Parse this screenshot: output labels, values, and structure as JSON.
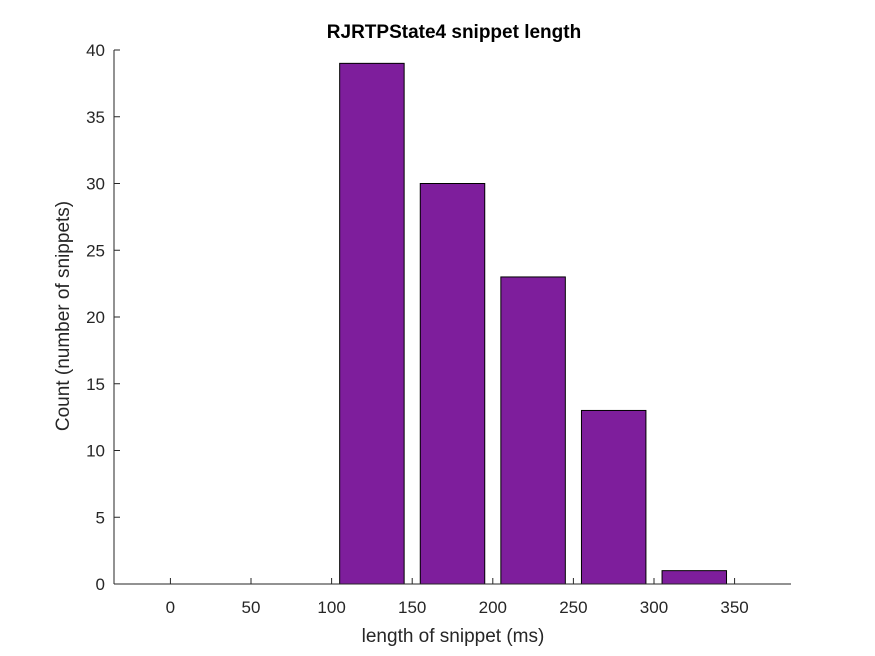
{
  "chart_data": {
    "type": "bar",
    "title": "RJRTPState4 snippet length",
    "xlabel": "length of snippet (ms)",
    "ylabel": "Count (number of snippets)",
    "xlim": [
      -35,
      385
    ],
    "ylim": [
      0,
      40
    ],
    "xticks": [
      0,
      50,
      100,
      150,
      200,
      250,
      300,
      350
    ],
    "yticks": [
      0,
      5,
      10,
      15,
      20,
      25,
      30,
      35,
      40
    ],
    "bar_color": "#7E1E9C",
    "bar_edge_color": "#000000",
    "bars": [
      {
        "x0": 105,
        "x1": 145,
        "value": 39
      },
      {
        "x0": 155,
        "x1": 195,
        "value": 30
      },
      {
        "x0": 205,
        "x1": 245,
        "value": 23
      },
      {
        "x0": 255,
        "x1": 295,
        "value": 13
      },
      {
        "x0": 305,
        "x1": 345,
        "value": 1
      }
    ]
  }
}
